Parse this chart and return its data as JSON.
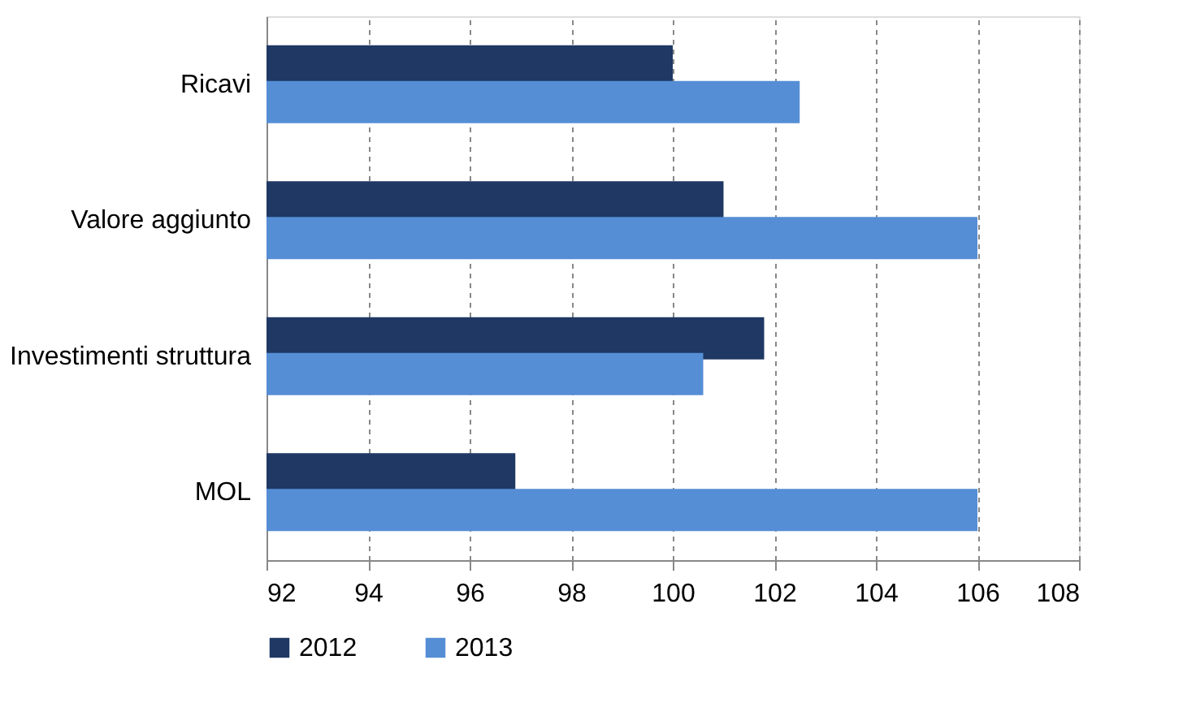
{
  "chart_data": {
    "type": "bar",
    "orientation": "horizontal",
    "categories": [
      "Ricavi",
      "Valore aggiunto",
      "Investimenti struttura",
      "MOL"
    ],
    "series": [
      {
        "name": "2012",
        "color": "#1f3864",
        "values": [
          100.0,
          101.0,
          101.8,
          96.9
        ]
      },
      {
        "name": "2013",
        "color": "#558ed5",
        "values": [
          102.5,
          106.0,
          100.6,
          106.0
        ]
      }
    ],
    "xlim": [
      92,
      108
    ],
    "xticks": [
      92,
      94,
      96,
      98,
      100,
      102,
      104,
      106,
      108
    ],
    "grid": "x",
    "legend": "bottom"
  }
}
